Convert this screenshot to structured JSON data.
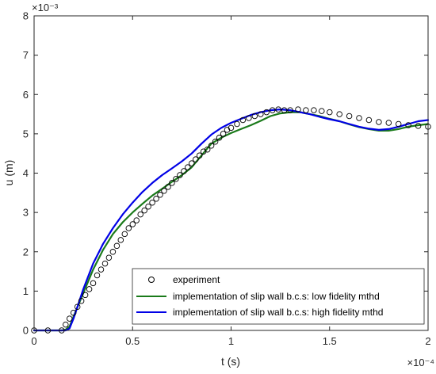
{
  "chart_data": {
    "type": "line",
    "xlabel": "t (s)",
    "ylabel": "u (m)",
    "x_exponent_label": "×10⁻⁴",
    "y_exponent_label": "×10⁻³",
    "xlim": [
      0,
      2
    ],
    "ylim": [
      0,
      8
    ],
    "x_ticks": [
      "0",
      "0.5",
      "1",
      "1.5",
      "2"
    ],
    "y_ticks": [
      "0",
      "1",
      "2",
      "3",
      "4",
      "5",
      "6",
      "7",
      "8"
    ],
    "grid": false,
    "legend_position": "bottom-right",
    "colors": {
      "experiment": "#000000",
      "low": "#1a7a1a",
      "high": "#0000e6"
    },
    "series": [
      {
        "name": "experiment",
        "style": "markers",
        "x": [
          0,
          0.07,
          0.14,
          0.16,
          0.18,
          0.2,
          0.22,
          0.24,
          0.26,
          0.28,
          0.3,
          0.32,
          0.34,
          0.36,
          0.38,
          0.4,
          0.42,
          0.44,
          0.46,
          0.48,
          0.5,
          0.52,
          0.54,
          0.56,
          0.58,
          0.6,
          0.62,
          0.64,
          0.66,
          0.68,
          0.7,
          0.72,
          0.74,
          0.76,
          0.78,
          0.8,
          0.82,
          0.84,
          0.86,
          0.88,
          0.9,
          0.92,
          0.94,
          0.96,
          0.98,
          1.0,
          1.03,
          1.06,
          1.09,
          1.12,
          1.15,
          1.18,
          1.21,
          1.24,
          1.27,
          1.3,
          1.34,
          1.38,
          1.42,
          1.46,
          1.5,
          1.55,
          1.6,
          1.65,
          1.7,
          1.75,
          1.8,
          1.85,
          1.9,
          1.95,
          2.0
        ],
        "y": [
          0,
          0,
          0,
          0.15,
          0.3,
          0.45,
          0.6,
          0.75,
          0.9,
          1.05,
          1.2,
          1.4,
          1.55,
          1.7,
          1.85,
          2.0,
          2.15,
          2.3,
          2.45,
          2.6,
          2.7,
          2.8,
          2.95,
          3.05,
          3.15,
          3.25,
          3.35,
          3.45,
          3.55,
          3.65,
          3.75,
          3.85,
          3.95,
          4.05,
          4.15,
          4.25,
          4.35,
          4.45,
          4.55,
          4.6,
          4.7,
          4.8,
          4.9,
          5.0,
          5.1,
          5.15,
          5.25,
          5.35,
          5.4,
          5.45,
          5.5,
          5.55,
          5.6,
          5.62,
          5.6,
          5.6,
          5.62,
          5.6,
          5.6,
          5.58,
          5.55,
          5.5,
          5.45,
          5.4,
          5.35,
          5.3,
          5.28,
          5.25,
          5.22,
          5.2,
          5.18
        ]
      },
      {
        "name": "implementation of slip wall b.c.s: low fidelity mthd",
        "style": "line",
        "x": [
          0,
          0.14,
          0.16,
          0.18,
          0.2,
          0.25,
          0.3,
          0.35,
          0.4,
          0.45,
          0.5,
          0.55,
          0.6,
          0.65,
          0.7,
          0.75,
          0.8,
          0.85,
          0.9,
          0.95,
          1.0,
          1.05,
          1.1,
          1.15,
          1.2,
          1.25,
          1.3,
          1.35,
          1.4,
          1.45,
          1.5,
          1.55,
          1.6,
          1.65,
          1.7,
          1.75,
          1.8,
          1.85,
          1.9,
          1.95,
          2.0
        ],
        "y": [
          0,
          0,
          0.02,
          0.1,
          0.35,
          0.95,
          1.55,
          2.05,
          2.45,
          2.75,
          3.0,
          3.22,
          3.43,
          3.6,
          3.78,
          3.95,
          4.15,
          4.45,
          4.75,
          4.9,
          5.02,
          5.12,
          5.22,
          5.33,
          5.45,
          5.52,
          5.55,
          5.55,
          5.5,
          5.45,
          5.38,
          5.32,
          5.24,
          5.17,
          5.12,
          5.08,
          5.08,
          5.12,
          5.18,
          5.22,
          5.25
        ]
      },
      {
        "name": "implementation of slip wall b.c.s: high fidelity mthd",
        "style": "line",
        "x": [
          0,
          0.16,
          0.18,
          0.2,
          0.25,
          0.3,
          0.35,
          0.4,
          0.45,
          0.5,
          0.55,
          0.6,
          0.65,
          0.7,
          0.75,
          0.8,
          0.85,
          0.9,
          0.95,
          1.0,
          1.05,
          1.1,
          1.15,
          1.2,
          1.25,
          1.3,
          1.35,
          1.4,
          1.45,
          1.5,
          1.55,
          1.6,
          1.65,
          1.7,
          1.75,
          1.8,
          1.85,
          1.9,
          1.95,
          2.0
        ],
        "y": [
          0,
          0,
          0.05,
          0.3,
          1.05,
          1.7,
          2.2,
          2.6,
          2.95,
          3.25,
          3.52,
          3.75,
          3.95,
          4.12,
          4.3,
          4.5,
          4.75,
          4.98,
          5.15,
          5.28,
          5.38,
          5.48,
          5.55,
          5.6,
          5.62,
          5.6,
          5.55,
          5.5,
          5.43,
          5.37,
          5.32,
          5.25,
          5.18,
          5.13,
          5.1,
          5.12,
          5.18,
          5.25,
          5.32,
          5.35
        ]
      }
    ]
  }
}
